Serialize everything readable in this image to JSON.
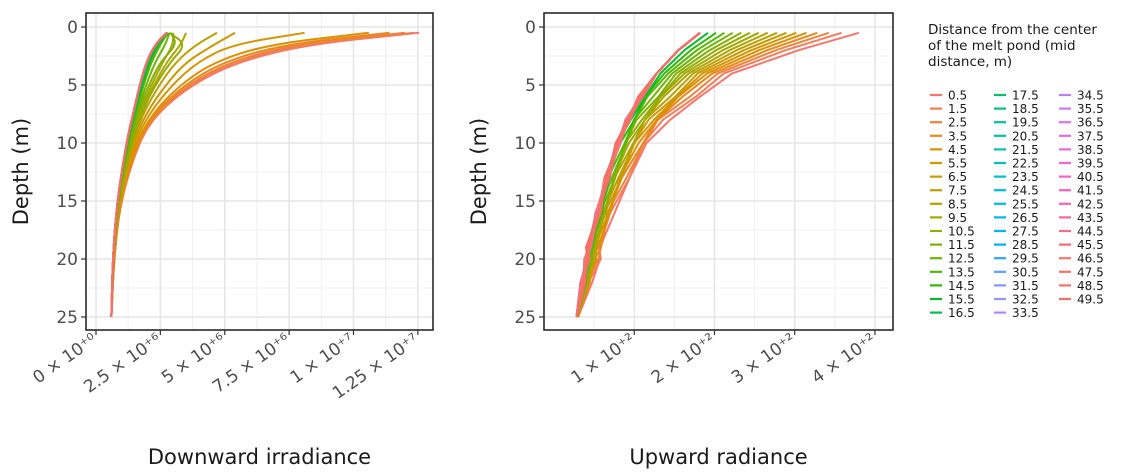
{
  "chart_data": [
    {
      "type": "line",
      "panel": "left",
      "xlabel": "Downward irradiance",
      "ylabel": "Depth (m)",
      "xlim": [
        0,
        12700000
      ],
      "ylim": [
        25,
        0
      ],
      "y_reversed": true,
      "x_ticks": [
        {
          "value": 0,
          "label": "0 × 10⁺⁰"
        },
        {
          "value": 2500000,
          "label": "2.5 × 10⁺⁶"
        },
        {
          "value": 5000000,
          "label": "5 × 10⁺⁶"
        },
        {
          "value": 7500000,
          "label": "7.5 × 10⁺⁶"
        },
        {
          "value": 10000000,
          "label": "1 × 10⁺⁷"
        },
        {
          "value": 12500000,
          "label": "1.25 × 10⁺⁷"
        }
      ],
      "y_ticks": [
        {
          "value": 0,
          "label": "0"
        },
        {
          "value": 5,
          "label": "5"
        },
        {
          "value": 10,
          "label": "10"
        },
        {
          "value": 15,
          "label": "15"
        },
        {
          "value": 20,
          "label": "20"
        },
        {
          "value": 25,
          "label": "25"
        }
      ],
      "depth": [
        0.5,
        1.5,
        3,
        5,
        7.5,
        10,
        15,
        20,
        25
      ],
      "series": [
        {
          "name": "0.5",
          "values": [
            12550000,
            8200000,
            5500000,
            3700000,
            2350000,
            1650000,
            950000,
            700000,
            600000
          ]
        },
        {
          "name": "1.5",
          "values": [
            12350000,
            8000000,
            5400000,
            3650000,
            2330000,
            1640000,
            945000,
            698000,
            600000
          ]
        },
        {
          "name": "2.5",
          "values": [
            12000000,
            7700000,
            5200000,
            3550000,
            2300000,
            1625000,
            940000,
            695000,
            600000
          ]
        },
        {
          "name": "3.5",
          "values": [
            11400000,
            7300000,
            4950000,
            3420000,
            2250000,
            1600000,
            930000,
            690000,
            600000
          ]
        },
        {
          "name": "4.5",
          "values": [
            10600000,
            6700000,
            4600000,
            3250000,
            2180000,
            1570000,
            920000,
            685000,
            600000
          ]
        },
        {
          "name": "5.5",
          "values": [
            8100000,
            5300000,
            3950000,
            2950000,
            2050000,
            1510000,
            905000,
            680000,
            600000
          ]
        },
        {
          "name": "6.5",
          "values": [
            5400000,
            4600000,
            3500000,
            2700000,
            1930000,
            1450000,
            890000,
            675000,
            600000
          ]
        },
        {
          "name": "7.5",
          "values": [
            4700000,
            3900000,
            3100000,
            2450000,
            1820000,
            1400000,
            875000,
            670000,
            600000
          ]
        },
        {
          "name": "8.5",
          "values": [
            3500000,
            3300000,
            2750000,
            2250000,
            1720000,
            1350000,
            860000,
            665000,
            600000
          ]
        },
        {
          "name": "9.5",
          "values": [
            3000000,
            3000000,
            2600000,
            2150000,
            1680000,
            1320000,
            852000,
            662000,
            600000
          ]
        },
        {
          "name": "10.5",
          "values": [
            2850000,
            3500000,
            2900000,
            2300000,
            1750000,
            1360000,
            862000,
            666000,
            600000
          ]
        },
        {
          "name": "11.5",
          "values": [
            2900000,
            3150000,
            2500000,
            2050000,
            1620000,
            1290000,
            845000,
            660000,
            600000
          ]
        },
        {
          "name": "12.5",
          "values": [
            2850000,
            2700000,
            2300000,
            1950000,
            1570000,
            1260000,
            838000,
            657000,
            600000
          ]
        },
        {
          "name": "13.5",
          "values": [
            2800000,
            2500000,
            2150000,
            1850000,
            1520000,
            1230000,
            832000,
            655000,
            600000
          ]
        },
        {
          "name": "14.5",
          "values": [
            2780000,
            2420000,
            2080000,
            1800000,
            1495000,
            1215000,
            828000,
            653000,
            600000
          ]
        },
        {
          "name": "15.5",
          "values": [
            2770000,
            2380000,
            2040000,
            1770000,
            1480000,
            1205000,
            825000,
            652000,
            600000
          ]
        },
        {
          "name": "16.5",
          "values": [
            2760000,
            2350000,
            2010000,
            1745000,
            1465000,
            1197000,
            823000,
            651000,
            600000
          ]
        },
        {
          "name": "17.5",
          "values": [
            2755000,
            2330000,
            1990000,
            1730000,
            1455000,
            1192000,
            822000,
            650000,
            600000
          ]
        },
        {
          "name": "18.5",
          "values": [
            2750000,
            2320000,
            1980000,
            1720000,
            1450000,
            1190000,
            821000,
            650000,
            600000
          ]
        },
        {
          "name": "19.5",
          "values": [
            2750000,
            2315000,
            1975000,
            1715000,
            1447000,
            1188000,
            820000,
            650000,
            600000
          ]
        },
        {
          "name": "20.5",
          "values": [
            2750000,
            2310000,
            1970000,
            1712000,
            1445000,
            1187000,
            820000,
            650000,
            600000
          ]
        },
        {
          "name": "21.5",
          "values": [
            2750000,
            2308000,
            1968000,
            1710000,
            1444000,
            1186000,
            820000,
            650000,
            600000
          ]
        },
        {
          "name": "22.5",
          "values": [
            2750000,
            2306000,
            1966000,
            1708000,
            1443000,
            1185000,
            820000,
            650000,
            600000
          ]
        },
        {
          "name": "23.5",
          "values": [
            2750000,
            2305000,
            1965000,
            1707000,
            1442000,
            1185000,
            820000,
            650000,
            600000
          ]
        },
        {
          "name": "24.5",
          "values": [
            2750000,
            2304000,
            1964000,
            1706000,
            1441000,
            1184000,
            820000,
            650000,
            600000
          ]
        },
        {
          "name": "25.5",
          "values": [
            2750000,
            2303000,
            1963000,
            1705000,
            1440000,
            1184000,
            820000,
            650000,
            600000
          ]
        },
        {
          "name": "26.5",
          "values": [
            2750000,
            2302000,
            1962000,
            1704000,
            1440000,
            1184000,
            820000,
            650000,
            600000
          ]
        },
        {
          "name": "27.5",
          "values": [
            2750000,
            2302000,
            1962000,
            1704000,
            1440000,
            1184000,
            820000,
            650000,
            600000
          ]
        },
        {
          "name": "28.5",
          "values": [
            2750000,
            2301000,
            1961000,
            1703000,
            1439000,
            1183000,
            820000,
            650000,
            600000
          ]
        },
        {
          "name": "29.5",
          "values": [
            2750000,
            2301000,
            1961000,
            1703000,
            1439000,
            1183000,
            820000,
            650000,
            600000
          ]
        },
        {
          "name": "30.5",
          "values": [
            2750000,
            2300000,
            1960000,
            1702000,
            1439000,
            1183000,
            820000,
            650000,
            600000
          ]
        },
        {
          "name": "31.5",
          "values": [
            2750000,
            2300000,
            1960000,
            1702000,
            1438000,
            1183000,
            820000,
            650000,
            600000
          ]
        },
        {
          "name": "32.5",
          "values": [
            2750000,
            2300000,
            1960000,
            1702000,
            1438000,
            1183000,
            820000,
            650000,
            600000
          ]
        },
        {
          "name": "33.5",
          "values": [
            2750000,
            2300000,
            1960000,
            1701000,
            1438000,
            1183000,
            820000,
            650000,
            600000
          ]
        },
        {
          "name": "34.5",
          "values": [
            2750000,
            2300000,
            1960000,
            1701000,
            1438000,
            1183000,
            820000,
            650000,
            600000
          ]
        },
        {
          "name": "35.5",
          "values": [
            2750000,
            2300000,
            1960000,
            1701000,
            1438000,
            1183000,
            820000,
            650000,
            600000
          ]
        },
        {
          "name": "36.5",
          "values": [
            2750000,
            2300000,
            1960000,
            1701000,
            1438000,
            1183000,
            820000,
            650000,
            600000
          ]
        },
        {
          "name": "37.5",
          "values": [
            2750000,
            2300000,
            1960000,
            1700000,
            1438000,
            1182000,
            820000,
            650000,
            600000
          ]
        },
        {
          "name": "38.5",
          "values": [
            2750000,
            2300000,
            1960000,
            1700000,
            1437000,
            1182000,
            820000,
            650000,
            600000
          ]
        },
        {
          "name": "39.5",
          "values": [
            2750000,
            2300000,
            1960000,
            1700000,
            1437000,
            1182000,
            820000,
            650000,
            600000
          ]
        },
        {
          "name": "40.5",
          "values": [
            2750000,
            2300000,
            1960000,
            1700000,
            1437000,
            1182000,
            820000,
            650000,
            600000
          ]
        },
        {
          "name": "41.5",
          "values": [
            2750000,
            2300000,
            1960000,
            1700000,
            1437000,
            1182000,
            820000,
            650000,
            600000
          ]
        },
        {
          "name": "42.5",
          "values": [
            2750000,
            2300000,
            1960000,
            1700000,
            1437000,
            1182000,
            820000,
            650000,
            600000
          ]
        },
        {
          "name": "43.5",
          "values": [
            2750000,
            2300000,
            1960000,
            1700000,
            1437000,
            1182000,
            820000,
            650000,
            600000
          ]
        },
        {
          "name": "44.5",
          "values": [
            2750000,
            2300000,
            1960000,
            1700000,
            1437000,
            1182000,
            820000,
            650000,
            600000
          ]
        },
        {
          "name": "45.5",
          "values": [
            2750000,
            2300000,
            1960000,
            1700000,
            1437000,
            1182000,
            820000,
            650000,
            600000
          ]
        },
        {
          "name": "46.5",
          "values": [
            2750000,
            2300000,
            1960000,
            1700000,
            1437000,
            1182000,
            820000,
            650000,
            600000
          ]
        },
        {
          "name": "47.5",
          "values": [
            2750000,
            2300000,
            1960000,
            1700000,
            1437000,
            1182000,
            820000,
            650000,
            600000
          ]
        },
        {
          "name": "48.5",
          "values": [
            2750000,
            2300000,
            1960000,
            1700000,
            1437000,
            1182000,
            820000,
            650000,
            600000
          ]
        },
        {
          "name": "49.5",
          "values": [
            2750000,
            2300000,
            1960000,
            1700000,
            1437000,
            1182000,
            820000,
            650000,
            600000
          ]
        }
      ]
    },
    {
      "type": "line",
      "panel": "right",
      "xlabel": "Upward radiance",
      "ylabel": "Depth (m)",
      "xlim": [
        0,
        410
      ],
      "ylim": [
        25,
        0
      ],
      "y_reversed": true,
      "x_ticks": [
        {
          "value": 100,
          "label": "1 × 10⁺²"
        },
        {
          "value": 200,
          "label": "2 × 10⁺²"
        },
        {
          "value": 300,
          "label": "3 × 10⁺²"
        },
        {
          "value": 400,
          "label": "4 × 10⁺²"
        }
      ],
      "y_ticks": [
        {
          "value": 0,
          "label": "0"
        },
        {
          "value": 5,
          "label": "5"
        },
        {
          "value": 10,
          "label": "10"
        },
        {
          "value": 15,
          "label": "15"
        },
        {
          "value": 20,
          "label": "20"
        },
        {
          "value": 25,
          "label": "25"
        }
      ],
      "depth": [
        0.5,
        2,
        4,
        6,
        8,
        10,
        13,
        16,
        19,
        20,
        22,
        25
      ],
      "series": [
        {
          "name": "0.5",
          "values": [
            380,
            305,
            222,
            182,
            142,
            118,
            94,
            73,
            60,
            57,
            45,
            30
          ]
        },
        {
          "name": "49.5",
          "values": [
            182,
            155,
            128,
            108,
            92,
            80,
            66,
            55,
            43,
            41,
            36,
            28
          ]
        }
      ]
    }
  ],
  "legend": {
    "title": "Distance from the center of the melt pond (mid distance, m)",
    "title_lines": [
      "Distance from the center",
      "of the melt pond (mid",
      "distance, m)"
    ],
    "entries": [
      "0.5",
      "1.5",
      "2.5",
      "3.5",
      "4.5",
      "5.5",
      "6.5",
      "7.5",
      "8.5",
      "9.5",
      "10.5",
      "11.5",
      "12.5",
      "13.5",
      "14.5",
      "15.5",
      "16.5",
      "17.5",
      "18.5",
      "19.5",
      "20.5",
      "21.5",
      "22.5",
      "23.5",
      "24.5",
      "25.5",
      "26.5",
      "27.5",
      "28.5",
      "29.5",
      "30.5",
      "31.5",
      "32.5",
      "33.5",
      "34.5",
      "35.5",
      "36.5",
      "37.5",
      "38.5",
      "39.5",
      "40.5",
      "41.5",
      "42.5",
      "43.5",
      "44.5",
      "45.5",
      "46.5",
      "47.5",
      "48.5",
      "49.5"
    ],
    "colors": [
      "#F8766D",
      "#F47D59",
      "#EE833F",
      "#E7891B",
      "#DE8F00",
      "#D49500",
      "#C99A00",
      "#BD9F00",
      "#B0A400",
      "#A2A800",
      "#93AC00",
      "#82B000",
      "#6EB400",
      "#55B700",
      "#2FBA00",
      "#00BC2E",
      "#00BE4D",
      "#00C065",
      "#00C17A",
      "#00C28D",
      "#00C29F",
      "#00C2B0",
      "#00C1C0",
      "#00BFCF",
      "#00BCDC",
      "#00B9E8",
      "#00B5F2",
      "#00B0FA",
      "#00AAFF",
      "#2CA3FF",
      "#619CFF",
      "#7F95FF",
      "#978EFF",
      "#AB87FF",
      "#BD7FFF",
      "#CD78F9",
      "#DA71F1",
      "#E66BE8",
      "#EF67DE",
      "#F664D2",
      "#FB62C5",
      "#FE62B7",
      "#FF63A8",
      "#FF6598",
      "#FE6889",
      "#FB6B79",
      "#F8766D",
      "#F77469",
      "#F77266",
      "#F56F63"
    ]
  }
}
